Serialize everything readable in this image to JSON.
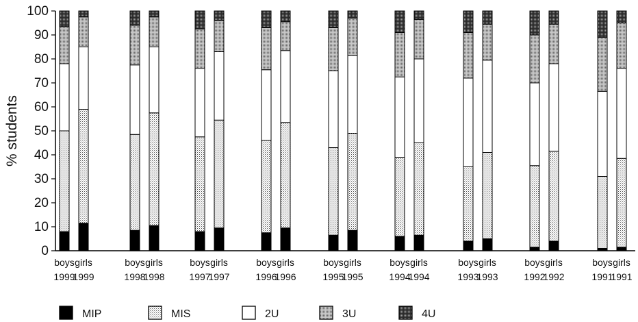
{
  "chart_data": {
    "type": "bar",
    "stacked": true,
    "ylabel": "% students",
    "ylim": [
      0,
      100
    ],
    "yticks": [
      0,
      10,
      20,
      30,
      40,
      50,
      60,
      70,
      80,
      90,
      100
    ],
    "categories": [
      [
        "boys",
        "1999"
      ],
      [
        "girls",
        "1999"
      ],
      [
        "boys",
        "1998"
      ],
      [
        "girls",
        "1998"
      ],
      [
        "boys",
        "1997"
      ],
      [
        "girls",
        "1997"
      ],
      [
        "boys",
        "1996"
      ],
      [
        "girls",
        "1996"
      ],
      [
        "boys",
        "1995"
      ],
      [
        "girls",
        "1995"
      ],
      [
        "boys",
        "1994"
      ],
      [
        "girls",
        "1994"
      ],
      [
        "boys",
        "1993"
      ],
      [
        "girls",
        "1993"
      ],
      [
        "boys",
        "1992"
      ],
      [
        "girls",
        "1992"
      ],
      [
        "boys",
        "1991"
      ],
      [
        "girls",
        "1991"
      ]
    ],
    "series": [
      {
        "name": "MIP",
        "pattern": "solid-black",
        "values": [
          8,
          11.5,
          8.5,
          10.5,
          8,
          9.5,
          7.5,
          9.5,
          6.5,
          8.5,
          6,
          6.5,
          4,
          5,
          1.5,
          4,
          1,
          1.5
        ]
      },
      {
        "name": "MIS",
        "pattern": "light-dots",
        "values": [
          42,
          47.5,
          40,
          47,
          39.5,
          45,
          38.5,
          44,
          36.5,
          40.5,
          33,
          38.5,
          31,
          36,
          34,
          37.5,
          30,
          37
        ]
      },
      {
        "name": "2U",
        "pattern": "white",
        "values": [
          28,
          26,
          29,
          27.5,
          28.5,
          28.5,
          29.5,
          30,
          32,
          32.5,
          33.5,
          35,
          37,
          38.5,
          34.5,
          36.5,
          35.5,
          37.5
        ]
      },
      {
        "name": "3U",
        "pattern": "medium-dots",
        "values": [
          15.5,
          12.5,
          16.5,
          12.5,
          16.5,
          13,
          17.5,
          12,
          18,
          15.5,
          18.5,
          16.5,
          19,
          15,
          20,
          16.5,
          22.5,
          19
        ]
      },
      {
        "name": "4U",
        "pattern": "dark-dots",
        "values": [
          6.5,
          2.5,
          6,
          2.5,
          7.5,
          4,
          7,
          4.5,
          7,
          3,
          9,
          3.5,
          9,
          5.5,
          10,
          5.5,
          11,
          5
        ]
      }
    ],
    "legend_position": "bottom",
    "grid": false
  }
}
